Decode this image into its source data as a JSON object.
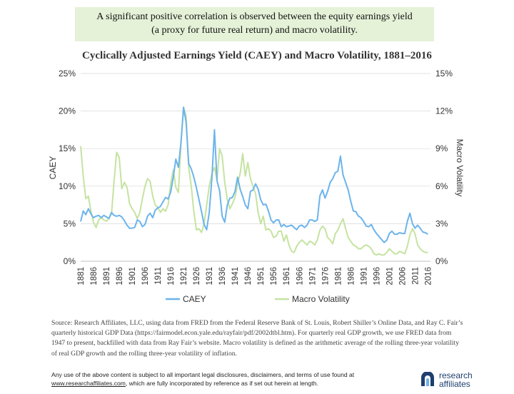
{
  "banner": {
    "line1": "A significant positive correlation is observed between the equity earnings yield",
    "line2": "(a proxy for future real return) and macro volatility."
  },
  "chart_data": {
    "type": "line",
    "title": "Cyclically Adjusted Earnings Yield (CAEY) and Macro Volatility, 1881–2016",
    "ylabel_left": "CAEY",
    "ylabel_right": "Macro Volatility",
    "ylim_left": [
      0,
      25
    ],
    "ylim_right": [
      0,
      15
    ],
    "xlim": [
      1881,
      2017
    ],
    "left_ticks": [
      "0%",
      "5%",
      "10%",
      "15%",
      "20%",
      "25%"
    ],
    "right_ticks": [
      "0%",
      "3%",
      "6%",
      "9%",
      "12%",
      "15%"
    ],
    "x_ticks": [
      "1881",
      "1886",
      "1891",
      "1896",
      "1901",
      "1906",
      "1911",
      "1916",
      "1921",
      "1926",
      "1931",
      "1936",
      "1941",
      "1946",
      "1951",
      "1956",
      "1961",
      "1966",
      "1971",
      "1976",
      "1981",
      "1986",
      "1991",
      "1996",
      "2001",
      "2006",
      "2011",
      "2016"
    ],
    "legend": [
      "CAEY",
      "Macro Volatility"
    ],
    "series": [
      {
        "name": "CAEY",
        "axis": "left",
        "color": "#6cb4ec",
        "points": [
          [
            1881,
            5.3
          ],
          [
            1882,
            6.7
          ],
          [
            1883,
            6.2
          ],
          [
            1884,
            7.0
          ],
          [
            1885,
            6.3
          ],
          [
            1886,
            5.8
          ],
          [
            1887,
            6.0
          ],
          [
            1888,
            6.1
          ],
          [
            1889,
            5.8
          ],
          [
            1890,
            6.1
          ],
          [
            1891,
            5.9
          ],
          [
            1892,
            5.7
          ],
          [
            1893,
            6.5
          ],
          [
            1894,
            6.1
          ],
          [
            1895,
            6.0
          ],
          [
            1896,
            6.1
          ],
          [
            1897,
            5.9
          ],
          [
            1898,
            5.4
          ],
          [
            1899,
            4.8
          ],
          [
            1900,
            4.4
          ],
          [
            1901,
            4.4
          ],
          [
            1902,
            4.5
          ],
          [
            1903,
            5.5
          ],
          [
            1904,
            5.3
          ],
          [
            1905,
            4.6
          ],
          [
            1906,
            4.9
          ],
          [
            1907,
            6.0
          ],
          [
            1908,
            6.4
          ],
          [
            1909,
            5.8
          ],
          [
            1910,
            6.8
          ],
          [
            1911,
            7.1
          ],
          [
            1912,
            7.3
          ],
          [
            1913,
            7.9
          ],
          [
            1914,
            8.5
          ],
          [
            1915,
            8.3
          ],
          [
            1916,
            9.2
          ],
          [
            1917,
            11.2
          ],
          [
            1918,
            13.6
          ],
          [
            1919,
            12.5
          ],
          [
            1920,
            15.8
          ],
          [
            1921,
            20.5
          ],
          [
            1922,
            18.5
          ],
          [
            1923,
            13.0
          ],
          [
            1924,
            12.3
          ],
          [
            1925,
            11.2
          ],
          [
            1926,
            9.8
          ],
          [
            1927,
            8.2
          ],
          [
            1928,
            6.6
          ],
          [
            1929,
            4.9
          ],
          [
            1930,
            4.2
          ],
          [
            1931,
            6.5
          ],
          [
            1932,
            11.0
          ],
          [
            1933,
            17.5
          ],
          [
            1934,
            10.7
          ],
          [
            1935,
            9.4
          ],
          [
            1936,
            6.0
          ],
          [
            1937,
            5.2
          ],
          [
            1938,
            7.5
          ],
          [
            1939,
            8.4
          ],
          [
            1940,
            8.5
          ],
          [
            1941,
            9.3
          ],
          [
            1942,
            11.2
          ],
          [
            1943,
            9.6
          ],
          [
            1944,
            8.6
          ],
          [
            1945,
            7.5
          ],
          [
            1946,
            7.0
          ],
          [
            1947,
            9.3
          ],
          [
            1948,
            9.5
          ],
          [
            1949,
            10.3
          ],
          [
            1950,
            9.6
          ],
          [
            1951,
            8.2
          ],
          [
            1952,
            7.5
          ],
          [
            1953,
            7.6
          ],
          [
            1954,
            6.7
          ],
          [
            1955,
            5.5
          ],
          [
            1956,
            5.1
          ],
          [
            1957,
            5.5
          ],
          [
            1958,
            5.5
          ],
          [
            1959,
            4.6
          ],
          [
            1960,
            4.9
          ],
          [
            1961,
            4.6
          ],
          [
            1962,
            4.7
          ],
          [
            1963,
            4.8
          ],
          [
            1964,
            4.5
          ],
          [
            1965,
            4.2
          ],
          [
            1966,
            4.7
          ],
          [
            1967,
            4.8
          ],
          [
            1968,
            4.5
          ],
          [
            1969,
            4.8
          ],
          [
            1970,
            5.5
          ],
          [
            1971,
            5.5
          ],
          [
            1972,
            5.3
          ],
          [
            1973,
            5.5
          ],
          [
            1974,
            8.7
          ],
          [
            1975,
            9.5
          ],
          [
            1976,
            8.4
          ],
          [
            1977,
            9.3
          ],
          [
            1978,
            10.5
          ],
          [
            1979,
            11.0
          ],
          [
            1980,
            11.8
          ],
          [
            1981,
            12.0
          ],
          [
            1982,
            14.0
          ],
          [
            1983,
            11.5
          ],
          [
            1984,
            10.5
          ],
          [
            1985,
            9.5
          ],
          [
            1986,
            8.0
          ],
          [
            1987,
            6.7
          ],
          [
            1988,
            6.6
          ],
          [
            1989,
            6.0
          ],
          [
            1990,
            5.8
          ],
          [
            1991,
            5.3
          ],
          [
            1992,
            4.7
          ],
          [
            1993,
            4.6
          ],
          [
            1994,
            4.9
          ],
          [
            1995,
            4.2
          ],
          [
            1996,
            3.7
          ],
          [
            1997,
            3.3
          ],
          [
            1998,
            2.9
          ],
          [
            1999,
            2.5
          ],
          [
            2000,
            2.8
          ],
          [
            2001,
            3.7
          ],
          [
            2002,
            4.0
          ],
          [
            2003,
            3.6
          ],
          [
            2004,
            3.6
          ],
          [
            2005,
            3.8
          ],
          [
            2006,
            3.7
          ],
          [
            2007,
            3.7
          ],
          [
            2008,
            5.3
          ],
          [
            2009,
            6.4
          ],
          [
            2010,
            5.0
          ],
          [
            2011,
            4.4
          ],
          [
            2012,
            4.8
          ],
          [
            2013,
            4.4
          ],
          [
            2014,
            3.9
          ],
          [
            2015,
            3.8
          ],
          [
            2016,
            3.6
          ]
        ]
      },
      {
        "name": "Macro Volatility",
        "axis": "right",
        "color": "#c5e3a1",
        "points": [
          [
            1881,
            9.2
          ],
          [
            1882,
            6.8
          ],
          [
            1883,
            5.0
          ],
          [
            1884,
            5.2
          ],
          [
            1885,
            4.0
          ],
          [
            1886,
            3.1
          ],
          [
            1887,
            2.7
          ],
          [
            1888,
            3.3
          ],
          [
            1889,
            3.5
          ],
          [
            1890,
            3.3
          ],
          [
            1891,
            3.2
          ],
          [
            1892,
            3.4
          ],
          [
            1893,
            3.8
          ],
          [
            1894,
            6.4
          ],
          [
            1895,
            8.7
          ],
          [
            1896,
            8.3
          ],
          [
            1897,
            5.8
          ],
          [
            1898,
            6.3
          ],
          [
            1899,
            5.9
          ],
          [
            1900,
            4.6
          ],
          [
            1901,
            4.2
          ],
          [
            1902,
            3.9
          ],
          [
            1903,
            3.4
          ],
          [
            1904,
            3.9
          ],
          [
            1905,
            5.0
          ],
          [
            1906,
            6.0
          ],
          [
            1907,
            6.6
          ],
          [
            1908,
            6.4
          ],
          [
            1909,
            5.2
          ],
          [
            1910,
            4.5
          ],
          [
            1911,
            4.3
          ],
          [
            1912,
            3.9
          ],
          [
            1913,
            4.2
          ],
          [
            1914,
            4.0
          ],
          [
            1915,
            4.5
          ],
          [
            1916,
            6.2
          ],
          [
            1917,
            7.3
          ],
          [
            1918,
            5.9
          ],
          [
            1919,
            5.5
          ],
          [
            1920,
            9.4
          ],
          [
            1921,
            12.3
          ],
          [
            1922,
            11.6
          ],
          [
            1923,
            7.5
          ],
          [
            1924,
            6.0
          ],
          [
            1925,
            4.0
          ],
          [
            1926,
            2.5
          ],
          [
            1927,
            2.6
          ],
          [
            1928,
            2.3
          ],
          [
            1929,
            3.0
          ],
          [
            1930,
            4.5
          ],
          [
            1931,
            6.0
          ],
          [
            1932,
            7.0
          ],
          [
            1933,
            7.5
          ],
          [
            1934,
            6.5
          ],
          [
            1935,
            9.0
          ],
          [
            1936,
            8.4
          ],
          [
            1937,
            6.3
          ],
          [
            1938,
            4.9
          ],
          [
            1939,
            4.2
          ],
          [
            1940,
            4.6
          ],
          [
            1941,
            5.1
          ],
          [
            1942,
            6.2
          ],
          [
            1943,
            7.0
          ],
          [
            1944,
            8.6
          ],
          [
            1945,
            6.8
          ],
          [
            1946,
            7.9
          ],
          [
            1947,
            6.6
          ],
          [
            1948,
            6.0
          ],
          [
            1949,
            5.4
          ],
          [
            1950,
            3.9
          ],
          [
            1951,
            3.0
          ],
          [
            1952,
            3.6
          ],
          [
            1953,
            2.5
          ],
          [
            1954,
            2.6
          ],
          [
            1955,
            2.4
          ],
          [
            1956,
            1.9
          ],
          [
            1957,
            2.0
          ],
          [
            1958,
            2.4
          ],
          [
            1959,
            2.4
          ],
          [
            1960,
            1.6
          ],
          [
            1961,
            2.1
          ],
          [
            1962,
            1.3
          ],
          [
            1963,
            0.8
          ],
          [
            1964,
            0.7
          ],
          [
            1965,
            1.2
          ],
          [
            1966,
            1.5
          ],
          [
            1967,
            1.7
          ],
          [
            1968,
            1.5
          ],
          [
            1969,
            1.3
          ],
          [
            1970,
            1.6
          ],
          [
            1971,
            1.5
          ],
          [
            1972,
            1.3
          ],
          [
            1973,
            1.7
          ],
          [
            1974,
            2.5
          ],
          [
            1975,
            2.8
          ],
          [
            1976,
            2.6
          ],
          [
            1977,
            1.9
          ],
          [
            1978,
            1.7
          ],
          [
            1979,
            1.4
          ],
          [
            1980,
            2.2
          ],
          [
            1981,
            2.5
          ],
          [
            1982,
            3.0
          ],
          [
            1983,
            3.4
          ],
          [
            1984,
            2.6
          ],
          [
            1985,
            1.9
          ],
          [
            1986,
            1.6
          ],
          [
            1987,
            1.3
          ],
          [
            1988,
            1.2
          ],
          [
            1989,
            1.0
          ],
          [
            1990,
            1.0
          ],
          [
            1991,
            1.2
          ],
          [
            1992,
            1.3
          ],
          [
            1993,
            1.2
          ],
          [
            1994,
            1.0
          ],
          [
            1995,
            0.6
          ],
          [
            1996,
            0.5
          ],
          [
            1997,
            0.6
          ],
          [
            1998,
            0.5
          ],
          [
            1999,
            0.5
          ],
          [
            2000,
            0.7
          ],
          [
            2001,
            1.0
          ],
          [
            2002,
            0.8
          ],
          [
            2003,
            0.6
          ],
          [
            2004,
            0.6
          ],
          [
            2005,
            0.8
          ],
          [
            2006,
            0.7
          ],
          [
            2007,
            0.6
          ],
          [
            2008,
            1.2
          ],
          [
            2009,
            2.1
          ],
          [
            2010,
            2.6
          ],
          [
            2011,
            2.2
          ],
          [
            2012,
            1.3
          ],
          [
            2013,
            1.0
          ],
          [
            2014,
            0.8
          ],
          [
            2015,
            0.7
          ],
          [
            2016,
            0.7
          ]
        ]
      }
    ]
  },
  "source": "Source: Research Affiliates, LLC, using data from FRED from the Federal Reserve Bank of St. Louis, Robert Shiller’s Online Data, and Ray C. Fair’s quarterly historical GDP Data (https://fairmodel.econ.yale.edu/rayfair/pdf/2002dtbl.htm). For quarterly real GDP growth, we use FRED data from 1947 to present, backfilled with data from Ray Fair’s website. Macro volatility is defined as the arithmetic average of the rolling three-year volatility of real GDP growth and the rolling three-year volatility of inflation.",
  "disclaimer": {
    "text": "Any use of the above content is subject to all important legal disclosures, disclaimers, and terms of use found at",
    "link": "www.researchaffiliates.com",
    "text2": ", which are fully incorporated by reference as if set out herein at length."
  },
  "logo": {
    "line1": "research",
    "line2": "affiliates",
    "color": "#1f3f6e"
  }
}
